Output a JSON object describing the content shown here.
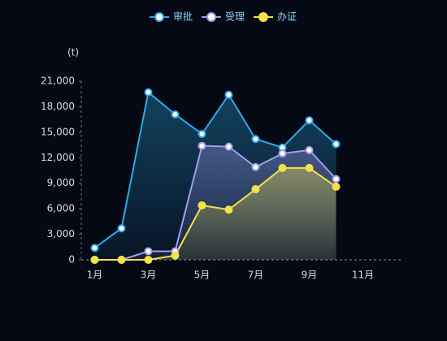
{
  "chart_data": {
    "type": "line",
    "area": true,
    "y_axis_label": "(t)",
    "categories": [
      "1月",
      null,
      "3月",
      null,
      "5月",
      null,
      "7月",
      null,
      "9月",
      null,
      "11月",
      null
    ],
    "series": [
      {
        "name": "审批",
        "color": "#2fa9ea",
        "values": [
          1400,
          3700,
          19700,
          17100,
          14800,
          19400,
          14200,
          13200,
          16400,
          13600,
          null,
          null
        ]
      },
      {
        "name": "受理",
        "color": "#a29cf0",
        "values": [
          0,
          0,
          1000,
          1000,
          13400,
          13300,
          10900,
          12500,
          12900,
          9500,
          null,
          null
        ]
      },
      {
        "name": "办证",
        "color": "#f3e24a",
        "values": [
          0,
          0,
          0,
          500,
          6400,
          5900,
          8300,
          10800,
          10800,
          8600,
          null,
          null
        ]
      }
    ],
    "ylim": [
      0,
      21000
    ],
    "yticks": [
      0,
      {
        "value": 3000,
        "label": "3,000"
      },
      {
        "value": 6000,
        "label": "6,000"
      },
      {
        "value": 9000,
        "label": "9,000"
      },
      {
        "value": 12000,
        "label": "12,000"
      },
      {
        "value": 15000,
        "label": "15,000"
      },
      {
        "value": 18000,
        "label": "18,000"
      },
      {
        "value": 21000,
        "label": "21,000"
      }
    ],
    "legend": "top"
  }
}
